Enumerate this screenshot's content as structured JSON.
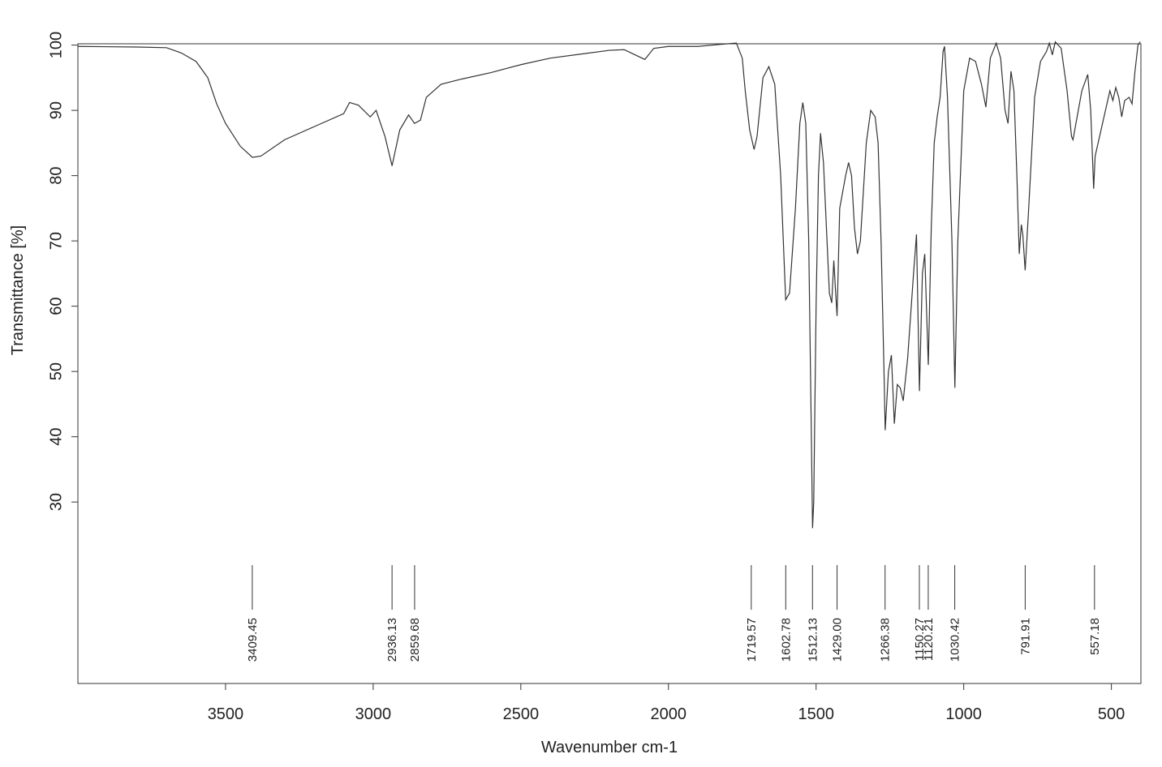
{
  "chart_data": {
    "type": "line",
    "x_label": "Wavenumber cm-1",
    "y_label": "Transmittance [%]",
    "xlim": [
      4000,
      400
    ],
    "ylim": [
      2.2,
      100.2
    ],
    "xticks": [
      3500,
      3000,
      2500,
      2000,
      1500,
      1000,
      500
    ],
    "yticks": [
      30,
      40,
      50,
      60,
      70,
      80,
      90,
      100
    ],
    "color": "#333333",
    "x": [
      4000,
      3800,
      3700,
      3650,
      3600,
      3560,
      3530,
      3500,
      3450,
      3409,
      3380,
      3300,
      3200,
      3100,
      3080,
      3050,
      3010,
      2990,
      2960,
      2936,
      2910,
      2880,
      2860,
      2840,
      2820,
      2770,
      2700,
      2600,
      2500,
      2400,
      2300,
      2200,
      2150,
      2080,
      2050,
      2000,
      1900,
      1800,
      1770,
      1750,
      1740,
      1725,
      1710,
      1700,
      1680,
      1660,
      1640,
      1620,
      1603,
      1590,
      1570,
      1555,
      1545,
      1535,
      1525,
      1516,
      1512,
      1508,
      1500,
      1492,
      1485,
      1475,
      1465,
      1455,
      1447,
      1440,
      1435,
      1429,
      1420,
      1400,
      1390,
      1380,
      1370,
      1360,
      1350,
      1330,
      1315,
      1300,
      1290,
      1280,
      1270,
      1266,
      1255,
      1245,
      1235,
      1225,
      1215,
      1205,
      1190,
      1170,
      1160,
      1150,
      1140,
      1132,
      1120,
      1110,
      1100,
      1090,
      1080,
      1070,
      1065,
      1055,
      1040,
      1030,
      1020,
      1000,
      980,
      960,
      940,
      925,
      910,
      890,
      875,
      860,
      850,
      840,
      830,
      820,
      812,
      805,
      800,
      792,
      780,
      760,
      740,
      720,
      710,
      700,
      690,
      670,
      650,
      635,
      630,
      620,
      600,
      580,
      570,
      560,
      555,
      540,
      520,
      505,
      495,
      485,
      475,
      465,
      455,
      440,
      430,
      420,
      410,
      402
    ],
    "values": [
      99.8,
      99.7,
      99.6,
      98.8,
      97.5,
      95,
      91,
      88,
      84.5,
      82.8,
      83,
      85.5,
      87.5,
      89.5,
      91.2,
      90.8,
      89,
      90,
      86,
      81.5,
      87,
      89.3,
      88,
      88.5,
      92,
      94,
      94.8,
      95.8,
      97,
      98,
      98.6,
      99.2,
      99.3,
      97.8,
      99.5,
      99.8,
      99.8,
      100.2,
      100.3,
      98,
      93,
      87,
      84,
      86,
      95,
      96.7,
      94,
      80,
      61,
      62,
      75,
      88,
      91.2,
      88,
      70,
      40,
      26,
      30,
      60,
      80,
      86.5,
      82,
      72,
      62,
      60.5,
      67,
      63,
      58.5,
      75,
      80,
      82,
      80,
      72,
      68,
      70,
      85,
      90,
      89,
      85,
      70,
      50,
      41,
      50,
      52.5,
      42,
      48,
      47.5,
      45.5,
      52,
      65,
      71,
      47,
      65,
      68,
      51,
      72,
      85,
      89,
      92,
      99,
      99.8,
      92,
      70,
      47.5,
      70,
      93,
      98,
      97.5,
      94,
      90.5,
      98,
      100.3,
      98,
      90,
      88,
      96,
      93,
      80,
      68,
      72.5,
      71,
      65.5,
      75,
      92,
      97.5,
      99,
      100.3,
      98.5,
      100.5,
      99.5,
      93,
      86,
      85.5,
      88,
      93,
      95.5,
      90,
      78,
      83,
      86,
      90,
      93,
      91.5,
      93.5,
      92,
      89,
      91.5,
      92,
      91,
      96,
      100,
      100.5
    ],
    "peaks": [
      3409.45,
      2936.13,
      2859.68,
      1719.57,
      1602.78,
      1512.13,
      {
        "value": 1429.0,
        "label": "1429.00"
      },
      1266.38,
      1150.27,
      1120.21,
      1030.42,
      791.91,
      557.18
    ]
  }
}
